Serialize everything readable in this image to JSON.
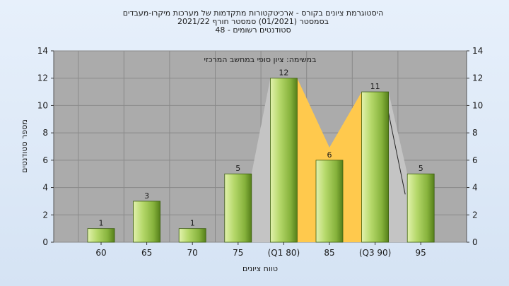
{
  "chart_data": {
    "type": "bar",
    "title_lines": [
      "היסטוגרמת ציונים בקורס - ארכיטקטורות מתקדמות של מערכות מיקרו-מעבדים",
      "בסמסטר  (01/2021)  סמסטר חורף 2021/22",
      "סטודנטים רשומים - 48"
    ],
    "plot_caption": "במשימה: ציון סופי במחשב המרכזי",
    "categories": [
      "60",
      "65",
      "70",
      "75",
      "(Q1 80)",
      "85",
      "(Q3 90)",
      "95"
    ],
    "values": [
      1,
      3,
      1,
      5,
      12,
      6,
      11,
      5
    ],
    "value_labels": [
      "1",
      "3",
      "1",
      "5",
      "12",
      "6",
      "11",
      "5"
    ],
    "ylim": [
      0,
      14
    ],
    "yticks": [
      "0",
      "2",
      "4",
      "6",
      "8",
      "10",
      "12",
      "14"
    ],
    "xlabel": "טווח ציונים",
    "ylabel": "מספר סטודנטים",
    "grid": true,
    "colors": {
      "page_bg": "#dce8f6",
      "plot_bg": "#ababab",
      "bar_light": "#cfe890",
      "bar_mid": "#96c24a",
      "bar_dark": "#5e8a1e",
      "quartile_band": "#ffc94d",
      "shadow_band": "#c6c6c6"
    }
  }
}
